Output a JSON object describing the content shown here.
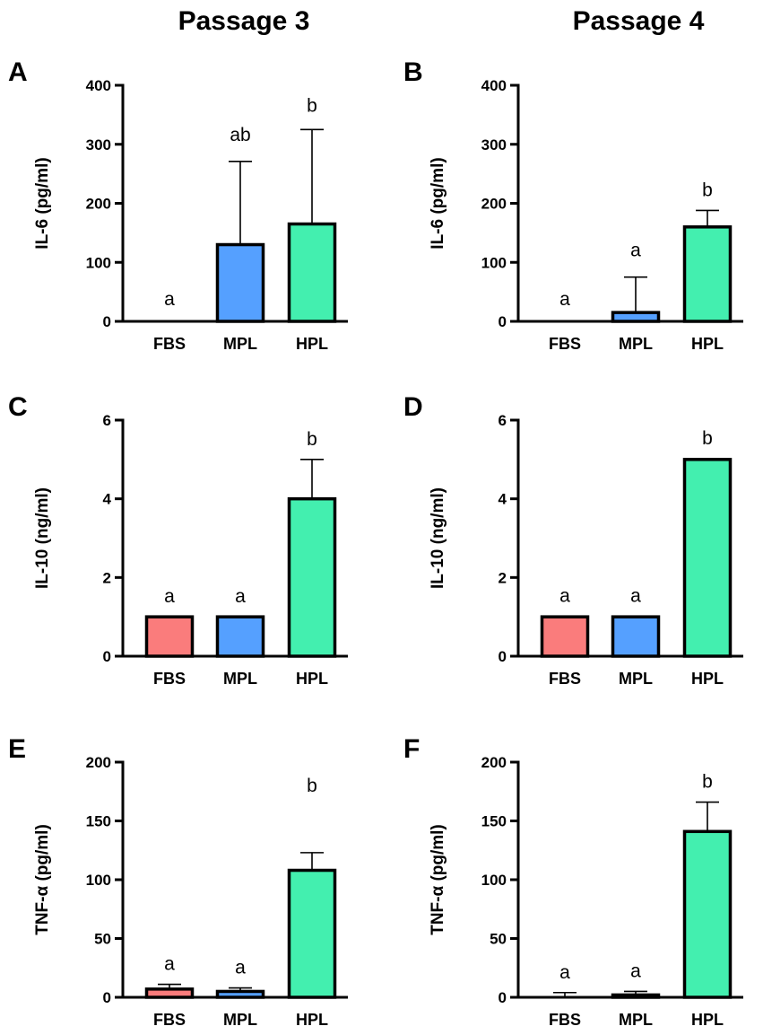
{
  "columns": [
    "Passage 3",
    "Passage 4"
  ],
  "colors": {
    "FBS": "#fa7c7c",
    "MPL": "#55a0ff",
    "HPL": "#43efaf"
  },
  "chart_data": [
    {
      "panel": "A",
      "type": "bar",
      "column": "Passage 3",
      "ylabel": "IL-6 (pg/ml)",
      "ylim": [
        0,
        400
      ],
      "yticks": [
        "0",
        "100",
        "200",
        "300",
        "400"
      ],
      "categories": [
        "FBS",
        "MPL",
        "HPL"
      ],
      "values": [
        0,
        130,
        165
      ],
      "errors": [
        0,
        141,
        160
      ],
      "significance": [
        "a",
        "ab",
        "b"
      ]
    },
    {
      "panel": "B",
      "type": "bar",
      "column": "Passage 4",
      "ylabel": "IL-6 (pg/ml)",
      "ylim": [
        0,
        400
      ],
      "yticks": [
        "0",
        "100",
        "200",
        "300",
        "400"
      ],
      "categories": [
        "FBS",
        "MPL",
        "HPL"
      ],
      "values": [
        0,
        15,
        160
      ],
      "errors": [
        0,
        60,
        28
      ],
      "significance": [
        "a",
        "a",
        "b"
      ]
    },
    {
      "panel": "C",
      "type": "bar",
      "column": "Passage 3",
      "ylabel": "IL-10 (ng/ml)",
      "ylim": [
        0,
        6
      ],
      "yticks": [
        "0",
        "2",
        "4",
        "6"
      ],
      "categories": [
        "FBS",
        "MPL",
        "HPL"
      ],
      "values": [
        1,
        1,
        4
      ],
      "errors": [
        0,
        0,
        1
      ],
      "significance": [
        "a",
        "a",
        "b"
      ]
    },
    {
      "panel": "D",
      "type": "bar",
      "column": "Passage 4",
      "ylabel": "IL-10 (ng/ml)",
      "ylim": [
        0,
        6
      ],
      "yticks": [
        "0",
        "2",
        "4",
        "6"
      ],
      "categories": [
        "FBS",
        "MPL",
        "HPL"
      ],
      "values": [
        1,
        1,
        5
      ],
      "errors": [
        0.02,
        0.02,
        0.02
      ],
      "significance": [
        "a",
        "a",
        "b"
      ]
    },
    {
      "panel": "E",
      "type": "bar",
      "column": "Passage 3",
      "ylabel": "TNF-α (pg/ml)",
      "ylim": [
        0,
        200
      ],
      "yticks": [
        "0",
        "50",
        "100",
        "150",
        "200"
      ],
      "categories": [
        "FBS",
        "MPL",
        "HPL"
      ],
      "values": [
        7,
        5,
        108
      ],
      "errors": [
        4,
        3,
        15
      ],
      "significance": [
        "a",
        "a",
        "b"
      ]
    },
    {
      "panel": "F",
      "type": "bar",
      "column": "Passage 4",
      "ylabel": "TNF-α (pg/ml)",
      "ylim": [
        0,
        200
      ],
      "yticks": [
        "0",
        "50",
        "100",
        "150",
        "200"
      ],
      "categories": [
        "FBS",
        "MPL",
        "HPL"
      ],
      "values": [
        0,
        2,
        141
      ],
      "errors": [
        4,
        3,
        25
      ],
      "significance": [
        "a",
        "a",
        "b"
      ]
    }
  ]
}
